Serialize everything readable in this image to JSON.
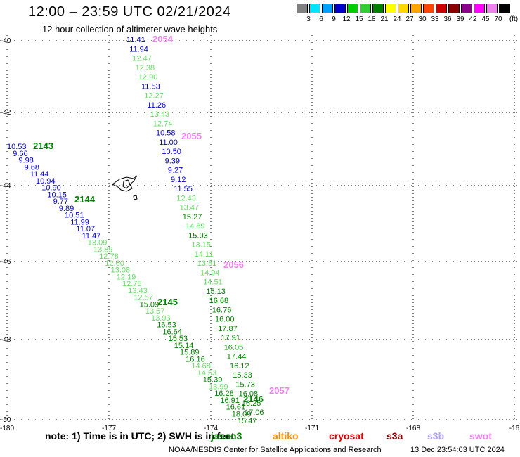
{
  "title": "12:00 – 23:59 UTC 02/21/2024",
  "subtitle": "12 hour collection of altimeter wave heights",
  "legend": {
    "unit": "(ft)",
    "colors": [
      "#808080",
      "#00e5ff",
      "#00a0ff",
      "#0000cd",
      "#00cd00",
      "#32cd32",
      "#008000",
      "#ffff00",
      "#ffd700",
      "#ffa500",
      "#ff4500",
      "#cd0000",
      "#8b0000",
      "#8b008b",
      "#ff00ff",
      "#ee82ee",
      "#000000"
    ],
    "labels": [
      "3",
      "6",
      "9",
      "12",
      "15",
      "18",
      "21",
      "24",
      "27",
      "30",
      "33",
      "36",
      "39",
      "42",
      "45",
      "70"
    ]
  },
  "axes": {
    "lon_labels": [
      "-180",
      "-177",
      "-174",
      "-171",
      "-168",
      "-16"
    ],
    "lat_labels": [
      "-40",
      "-42",
      "-44",
      "-46",
      "-48",
      "-50"
    ]
  },
  "passes": [
    {
      "id": "2143",
      "color": "#008000"
    },
    {
      "id": "2144",
      "color": "#008000"
    },
    {
      "id": "2145",
      "color": "#008000"
    },
    {
      "id": "2146",
      "color": "#008000"
    },
    {
      "id": "2054",
      "color": "#ee82ee"
    },
    {
      "id": "2055",
      "color": "#ee82ee"
    },
    {
      "id": "2056",
      "color": "#ee82ee"
    },
    {
      "id": "2057",
      "color": "#ee82ee"
    }
  ],
  "track_left": [
    {
      "v": "10.53",
      "c": "#0000cd"
    },
    {
      "v": "9.66",
      "c": "#0000cd"
    },
    {
      "v": "9.98",
      "c": "#0000cd"
    },
    {
      "v": "9.68",
      "c": "#0000cd"
    },
    {
      "v": "11.44",
      "c": "#0000cd"
    },
    {
      "v": "10.94",
      "c": "#0000cd"
    },
    {
      "v": "10.90",
      "c": "#0000cd"
    },
    {
      "v": "10.15",
      "c": "#0000cd"
    },
    {
      "v": "9.77",
      "c": "#0000cd"
    },
    {
      "v": "9.89",
      "c": "#0000cd"
    },
    {
      "v": "10.51",
      "c": "#0000cd"
    },
    {
      "v": "11.99",
      "c": "#0000cd"
    },
    {
      "v": "11.07",
      "c": "#0000cd"
    },
    {
      "v": "11.47",
      "c": "#0000cd"
    },
    {
      "v": "13.09",
      "c": "#66dd66"
    },
    {
      "v": "13.89",
      "c": "#66dd66"
    },
    {
      "v": "12.78",
      "c": "#66dd66"
    },
    {
      "v": "12.60",
      "c": "#66dd66"
    },
    {
      "v": "13.08",
      "c": "#66dd66"
    },
    {
      "v": "12.19",
      "c": "#66dd66"
    },
    {
      "v": "12.75",
      "c": "#66dd66"
    },
    {
      "v": "13.43",
      "c": "#66dd66"
    },
    {
      "v": "12.57",
      "c": "#66dd66"
    },
    {
      "v": "15.09",
      "c": "#008000"
    },
    {
      "v": "13.57",
      "c": "#66dd66"
    },
    {
      "v": "13.93",
      "c": "#66dd66"
    },
    {
      "v": "16.53",
      "c": "#008000"
    },
    {
      "v": "16.64",
      "c": "#008000"
    },
    {
      "v": "15.53",
      "c": "#008000"
    },
    {
      "v": "15.14",
      "c": "#008000"
    },
    {
      "v": "15.89",
      "c": "#008000"
    },
    {
      "v": "16.16",
      "c": "#008000"
    },
    {
      "v": "14.68",
      "c": "#66dd66"
    },
    {
      "v": "14.53",
      "c": "#66dd66"
    },
    {
      "v": "15.39",
      "c": "#008000"
    },
    {
      "v": "13.99",
      "c": "#66dd66"
    },
    {
      "v": "16.28",
      "c": "#008000"
    },
    {
      "v": "16.91",
      "c": "#008000"
    },
    {
      "v": "16.61",
      "c": "#008000"
    },
    {
      "v": "18.09",
      "c": "#008000"
    },
    {
      "v": "15.47",
      "c": "#008000"
    }
  ],
  "track_right": [
    {
      "v": "11.41",
      "c": "#0000cd"
    },
    {
      "v": "11.94",
      "c": "#0000cd"
    },
    {
      "v": "12.47",
      "c": "#66dd66"
    },
    {
      "v": "12.38",
      "c": "#66dd66"
    },
    {
      "v": "12.90",
      "c": "#66dd66"
    },
    {
      "v": "11.53",
      "c": "#0000cd"
    },
    {
      "v": "12.27",
      "c": "#66dd66"
    },
    {
      "v": "11.26",
      "c": "#0000cd"
    },
    {
      "v": "13.43",
      "c": "#66dd66"
    },
    {
      "v": "12.74",
      "c": "#66dd66"
    },
    {
      "v": "10.58",
      "c": "#0000cd"
    },
    {
      "v": "11.00",
      "c": "#0000cd"
    },
    {
      "v": "10.50",
      "c": "#0000cd"
    },
    {
      "v": "9.39",
      "c": "#0000cd"
    },
    {
      "v": "9.27",
      "c": "#0000cd"
    },
    {
      "v": "9.12",
      "c": "#0000cd"
    },
    {
      "v": "11.55",
      "c": "#0000cd"
    },
    {
      "v": "12.43",
      "c": "#66dd66"
    },
    {
      "v": "13.47",
      "c": "#66dd66"
    },
    {
      "v": "15.27",
      "c": "#008000"
    },
    {
      "v": "14.89",
      "c": "#66dd66"
    },
    {
      "v": "15.03",
      "c": "#008000"
    },
    {
      "v": "13.15",
      "c": "#66dd66"
    },
    {
      "v": "14.11",
      "c": "#66dd66"
    },
    {
      "v": "13.81",
      "c": "#66dd66"
    },
    {
      "v": "14.94",
      "c": "#66dd66"
    },
    {
      "v": "14.51",
      "c": "#66dd66"
    },
    {
      "v": "15.13",
      "c": "#008000"
    },
    {
      "v": "16.68",
      "c": "#008000"
    },
    {
      "v": "16.76",
      "c": "#008000"
    },
    {
      "v": "16.00",
      "c": "#008000"
    },
    {
      "v": "17.87",
      "c": "#008000"
    },
    {
      "v": "17.91",
      "c": "#008000"
    },
    {
      "v": "16.05",
      "c": "#008000"
    },
    {
      "v": "17.44",
      "c": "#008000"
    },
    {
      "v": "16.12",
      "c": "#008000"
    },
    {
      "v": "15.33",
      "c": "#008000"
    },
    {
      "v": "15.73",
      "c": "#008000"
    },
    {
      "v": "16.08",
      "c": "#008000"
    },
    {
      "v": "16.25",
      "c": "#008000"
    },
    {
      "v": "17.06",
      "c": "#008000"
    }
  ],
  "note": "note:  1) Time is in UTC;  2) SWH is in feet",
  "missions": [
    {
      "name": "jason3",
      "color": "#008000"
    },
    {
      "name": "altiko",
      "color": "#ff8c00"
    },
    {
      "name": "cryosat",
      "color": "#dd0000"
    },
    {
      "name": "s3a",
      "color": "#8b0000"
    },
    {
      "name": "s3b",
      "color": "#b0a0ff"
    },
    {
      "name": "swot",
      "color": "#ee82ee"
    }
  ],
  "footer": {
    "credit": "NOAA/NESDIS Center for Satellite Applications and Research",
    "date": "13 Dec 23:54:03 UTC 2024"
  }
}
